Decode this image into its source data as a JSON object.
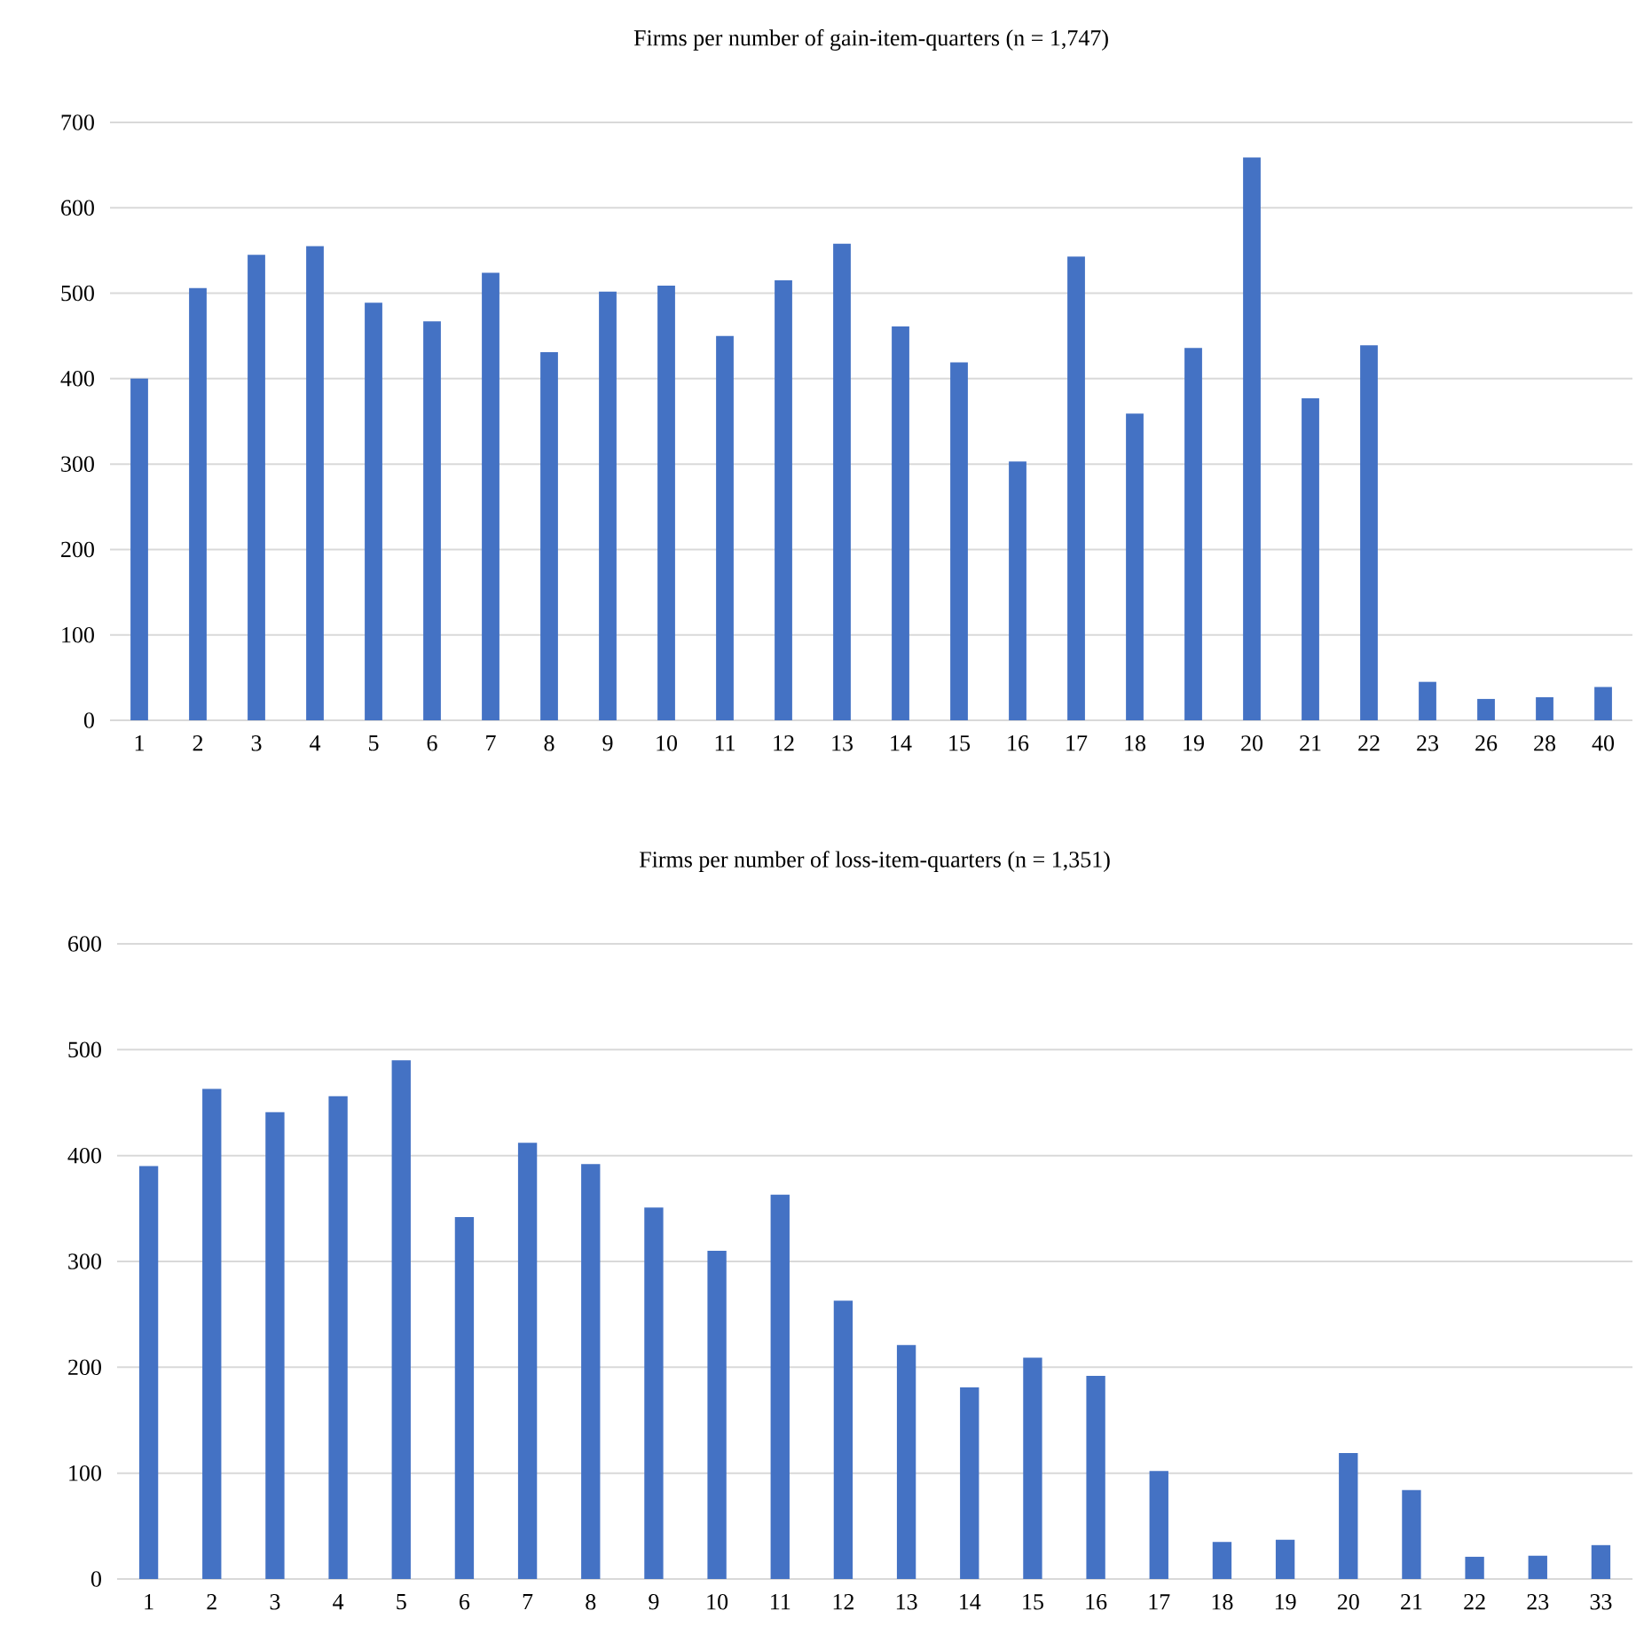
{
  "chart_data": [
    {
      "type": "bar",
      "title": "Firms per number of gain-item-quarters (n = 1,747)",
      "categories": [
        "1",
        "2",
        "3",
        "4",
        "5",
        "6",
        "7",
        "8",
        "9",
        "10",
        "11",
        "12",
        "13",
        "14",
        "15",
        "16",
        "17",
        "18",
        "19",
        "20",
        "21",
        "22",
        "23",
        "26",
        "28",
        "40"
      ],
      "values": [
        400,
        506,
        545,
        555,
        489,
        467,
        524,
        431,
        502,
        509,
        450,
        515,
        558,
        461,
        419,
        303,
        543,
        359,
        436,
        659,
        377,
        439,
        45,
        25,
        27,
        39
      ],
      "color": "#4472c4",
      "ylim": [
        0,
        700
      ],
      "yticks": [
        0,
        100,
        200,
        300,
        400,
        500,
        600,
        700
      ],
      "grid": "y"
    },
    {
      "type": "bar",
      "title": "Firms per number of loss-item-quarters (n = 1,351)",
      "categories": [
        "1",
        "2",
        "3",
        "4",
        "5",
        "6",
        "7",
        "8",
        "9",
        "10",
        "11",
        "12",
        "13",
        "14",
        "15",
        "16",
        "17",
        "18",
        "19",
        "20",
        "21",
        "22",
        "23",
        "33"
      ],
      "values": [
        390,
        463,
        441,
        456,
        490,
        342,
        412,
        392,
        351,
        310,
        363,
        263,
        221,
        181,
        209,
        192,
        102,
        35,
        37,
        119,
        84,
        21,
        22,
        32
      ],
      "color": "#4472c4",
      "ylim": [
        0,
        600
      ],
      "yticks": [
        0,
        100,
        200,
        300,
        400,
        500,
        600
      ],
      "grid": "y"
    }
  ]
}
